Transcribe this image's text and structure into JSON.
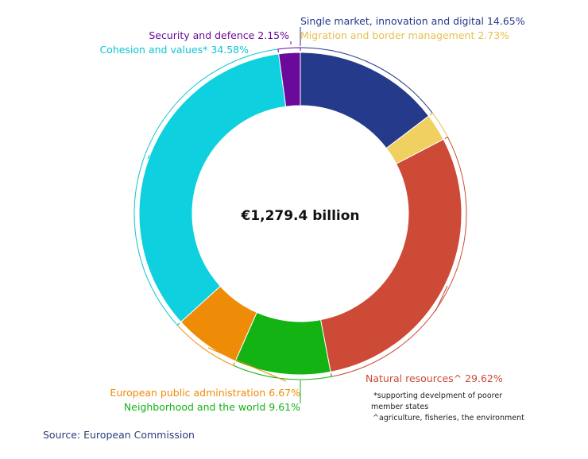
{
  "chart_data": {
    "type": "pie",
    "hole": true,
    "center_label": "€1,279.4 billion",
    "categories": [
      "Single market, innovation and digital",
      "Migration and border management",
      "Natural resources^",
      "Neighborhood and the world",
      "European public administration",
      "Cohesion and values*",
      "Security and defence"
    ],
    "values": [
      14.65,
      2.73,
      29.62,
      9.61,
      6.67,
      34.58,
      2.15
    ],
    "labels": [
      "Single market, innovation and digital 14.65%",
      "Migration and border management 2.73%",
      "Natural resources^ 29.62%",
      "Neighborhood and the world 9.61%",
      "European public administration 6.67%",
      "Cohesion and values* 34.58%",
      "Security and defence 2.15%"
    ],
    "colors": [
      "#253a8a",
      "#f0d060",
      "#cc4a36",
      "#12b312",
      "#ee8c08",
      "#0ed0de",
      "#6b0a9a"
    ],
    "label_colors": [
      "#253a8a",
      "#e8c050",
      "#cc4a36",
      "#12b312",
      "#ee8c08",
      "#0ec5d4",
      "#6b0a9a"
    ],
    "notes": [
      "*supporting develpment of poorer",
      "member states",
      "^agriculture, fisheries, the environment"
    ],
    "source": "Source: European Commission"
  }
}
